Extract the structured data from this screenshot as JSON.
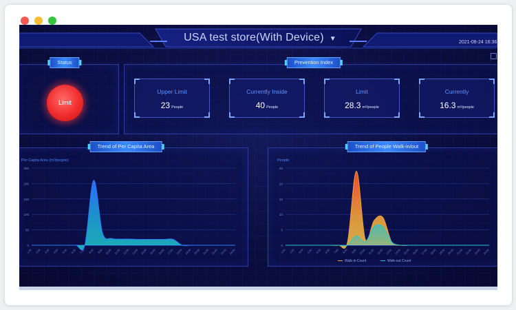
{
  "window": {
    "controls": [
      "close",
      "minimize",
      "maximize"
    ],
    "colors": [
      "#f25a55",
      "#f7bd32",
      "#33c63e"
    ]
  },
  "header": {
    "store_title": "USA test store(With Device)",
    "dropdown_icon": "caret-down-icon",
    "datetime": "2021-08-24 16:36"
  },
  "status": {
    "tag": "Status",
    "button_label": "Limit",
    "button_color": "#f02c2c"
  },
  "prevention": {
    "tag": "Prevention Index",
    "cards": [
      {
        "label": "Upper Limit",
        "value": "23",
        "unit": "People"
      },
      {
        "label": "Currently Inside",
        "value": "40",
        "unit": "People"
      },
      {
        "label": "Limit",
        "value": "28.3",
        "unit": "m²/people"
      },
      {
        "label": "Currently",
        "value": "16.3",
        "unit": "m²/people"
      }
    ]
  },
  "chart_data": [
    {
      "type": "area",
      "title": "Trend of Per Capita Area",
      "ylabel": "Per Capita Area (m²/people)",
      "xlabel": "",
      "ylim": [
        0,
        250
      ],
      "yticks": [
        "250",
        "200",
        "150",
        "100",
        "50",
        "0"
      ],
      "x": [
        "1:00",
        "2:00",
        "3:00",
        "4:00",
        "5:00",
        "6:00",
        "7:00",
        "8:00",
        "9:00",
        "10:00",
        "11:00",
        "12:00",
        "13:00",
        "14:00",
        "15:00",
        "16:00",
        "17:00",
        "18:00",
        "19:00",
        "20:00",
        "21:00",
        "22:00",
        "23:00",
        "24:00"
      ],
      "series": [
        {
          "values": [
            0,
            0,
            0,
            0,
            0,
            0,
            0,
            210,
            40,
            22,
            20,
            20,
            19,
            19,
            19,
            19,
            19,
            0,
            0,
            0,
            0,
            0,
            0,
            0
          ]
        }
      ],
      "color": "#2a7dff"
    },
    {
      "type": "area",
      "title": "Trend of People Walk-in/out",
      "ylabel": "People",
      "xlabel": "",
      "ylim": [
        0,
        25
      ],
      "yticks": [
        "25",
        "20",
        "15",
        "10",
        "5",
        "0"
      ],
      "x": [
        "1:00",
        "2:00",
        "3:00",
        "4:00",
        "5:00",
        "6:00",
        "7:00",
        "8:00",
        "9:00",
        "10:00",
        "11:00",
        "12:00",
        "13:00",
        "14:00",
        "15:00",
        "16:00",
        "17:00",
        "18:00",
        "19:00",
        "20:00",
        "21:00",
        "22:00",
        "23:00",
        "24:00"
      ],
      "series": [
        {
          "name": "Walk-in Count",
          "color": "#e8a13a",
          "values": [
            0,
            0,
            0,
            0,
            0,
            0,
            0,
            1,
            24,
            2,
            8,
            9,
            1,
            0,
            0,
            0,
            0,
            0,
            0,
            0,
            0,
            0,
            0,
            0
          ]
        },
        {
          "name": "Walk-out Count",
          "color": "#21c7d6",
          "values": [
            0,
            0,
            0,
            0,
            0,
            0,
            0,
            0,
            3,
            1,
            6,
            6,
            1,
            0,
            0,
            0,
            0,
            0,
            0,
            0,
            0,
            0,
            0,
            0
          ]
        }
      ],
      "legend": "bottom-center"
    }
  ]
}
